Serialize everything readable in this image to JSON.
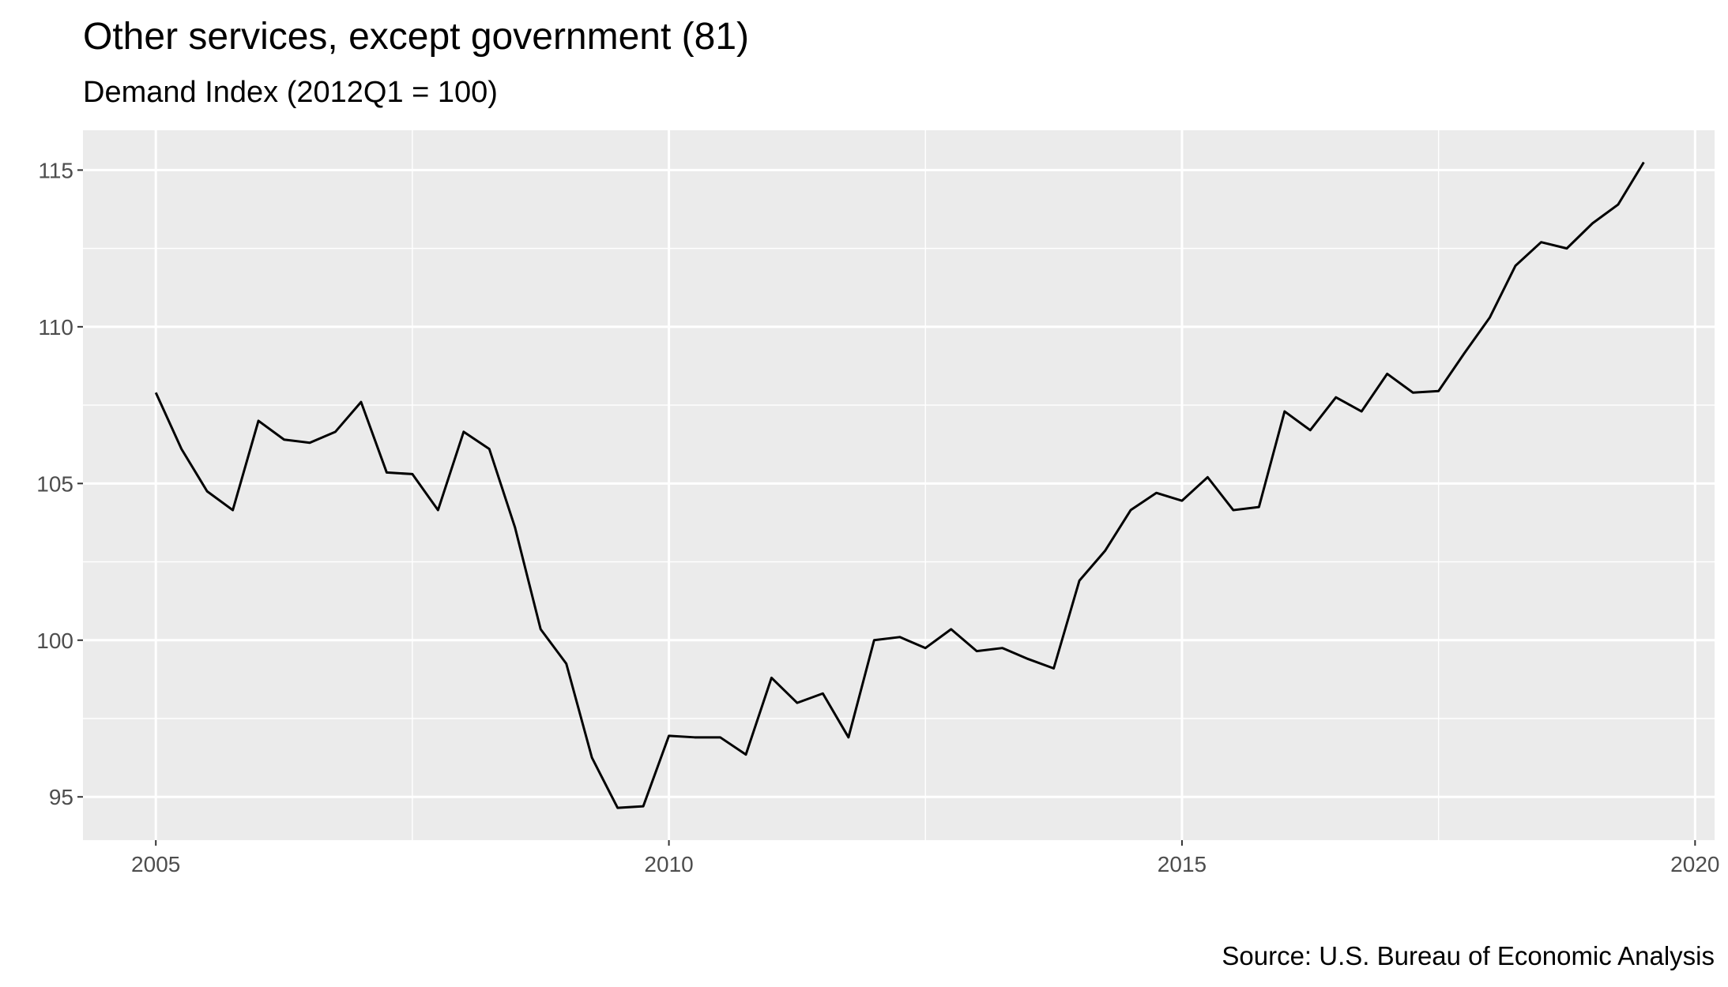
{
  "chart_data": {
    "type": "line",
    "title": "Other services, except government (81)",
    "subtitle": "Demand Index (2012Q1 = 100)",
    "source": "Source: U.S. Bureau of Economic Analysis",
    "x": [
      2005,
      2005.25,
      2005.5,
      2005.75,
      2006,
      2006.25,
      2006.5,
      2006.75,
      2007,
      2007.25,
      2007.5,
      2007.75,
      2008,
      2008.25,
      2008.5,
      2008.75,
      2009,
      2009.25,
      2009.5,
      2009.75,
      2010,
      2010.25,
      2010.5,
      2010.75,
      2011,
      2011.25,
      2011.5,
      2011.75,
      2012,
      2012.25,
      2012.5,
      2012.75,
      2013,
      2013.25,
      2013.5,
      2013.75,
      2014,
      2014.25,
      2014.5,
      2014.75,
      2015,
      2015.25,
      2015.5,
      2015.75,
      2016,
      2016.25,
      2016.5,
      2016.75,
      2017,
      2017.25,
      2017.5,
      2017.75,
      2018,
      2018.25,
      2018.5,
      2018.75,
      2019,
      2019.25,
      2019.5
    ],
    "series": [
      {
        "color": "#000000",
        "values": [
          107.9,
          106.1,
          104.75,
          104.15,
          107.0,
          106.4,
          106.3,
          106.65,
          107.6,
          105.35,
          105.3,
          104.15,
          106.65,
          106.1,
          103.6,
          100.35,
          99.25,
          96.25,
          94.65,
          94.7,
          96.95,
          96.9,
          96.9,
          96.35,
          98.8,
          98.0,
          98.3,
          96.9,
          100.0,
          100.1,
          99.75,
          100.35,
          99.65,
          99.75,
          99.4,
          99.1,
          101.9,
          102.85,
          104.15,
          104.7,
          104.45,
          105.2,
          104.15,
          104.25,
          107.3,
          106.7,
          107.75,
          107.3,
          108.5,
          107.9,
          107.95,
          109.15,
          110.3,
          111.95,
          112.7,
          112.5,
          113.3,
          113.9,
          115.25
        ]
      }
    ],
    "xlim": [
      2004.29,
      2020.19
    ],
    "xticks": [
      2005,
      2010,
      2015,
      2020
    ],
    "ylim": [
      93.62,
      116.27
    ],
    "yticks": [
      95,
      100,
      105,
      110,
      115
    ],
    "grid": true
  }
}
